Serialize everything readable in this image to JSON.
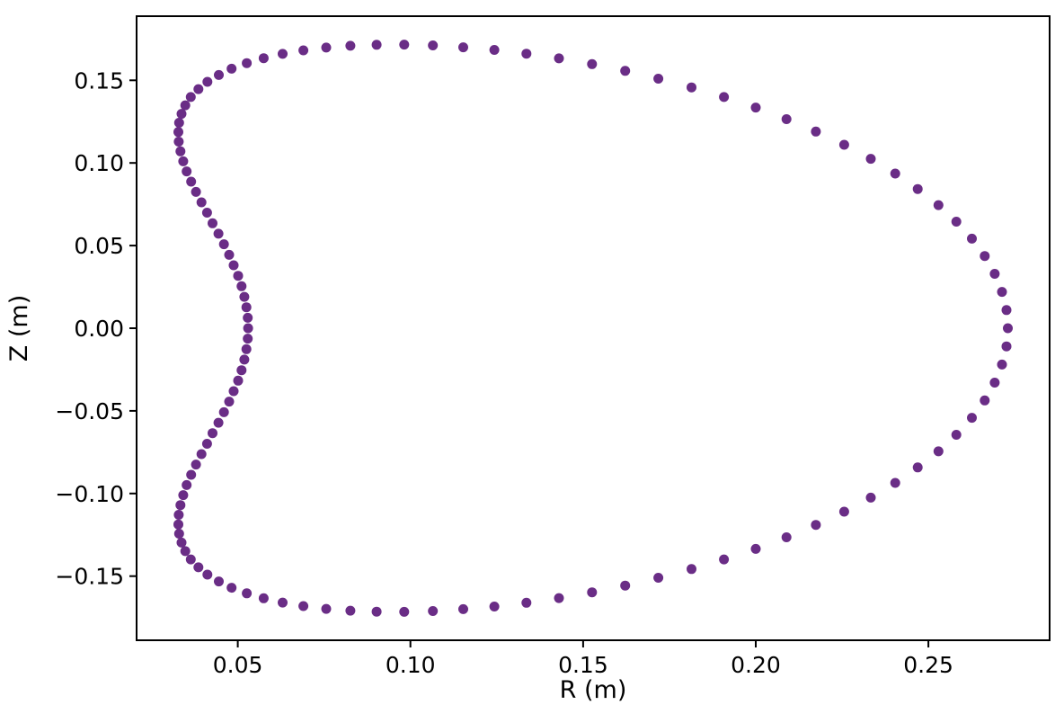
{
  "figure": {
    "background": "#ffffff",
    "frame_color": "#000000"
  },
  "chart_data": {
    "type": "scatter",
    "title": "",
    "xlabel": "R (m)",
    "ylabel": "Z (m)",
    "grid": false,
    "legend": null,
    "xlim": [
      0.0207,
      0.2851
    ],
    "ylim": [
      -0.1888,
      0.1888
    ],
    "xticks": {
      "values": [
        0.05,
        0.1,
        0.15,
        0.2,
        0.25
      ],
      "labels": [
        "0.05",
        "0.10",
        "0.15",
        "0.20",
        "0.25"
      ]
    },
    "yticks": {
      "values": [
        0.15,
        0.1,
        0.05,
        0.0,
        -0.05,
        -0.1,
        -0.15
      ],
      "labels": [
        "0.15",
        "0.10",
        "0.05",
        "0.00",
        "−0.05",
        "−0.10",
        "−0.15"
      ]
    },
    "marker": {
      "shape": "circle",
      "color": "#6a2d86",
      "radius_px": 5.5
    },
    "series": [
      {
        "name": "closed-boundary-curve",
        "points": [
          [
            0.273,
            0.0
          ],
          [
            0.2726,
            0.011
          ],
          [
            0.2713,
            0.022
          ],
          [
            0.2692,
            0.0329
          ],
          [
            0.2663,
            0.0437
          ],
          [
            0.2626,
            0.0542
          ],
          [
            0.2581,
            0.0645
          ],
          [
            0.2529,
            0.0745
          ],
          [
            0.2469,
            0.0842
          ],
          [
            0.2404,
            0.0936
          ],
          [
            0.2333,
            0.1025
          ],
          [
            0.2256,
            0.111
          ],
          [
            0.2174,
            0.119
          ],
          [
            0.2089,
            0.1265
          ],
          [
            0.2,
            0.1335
          ],
          [
            0.1908,
            0.1399
          ],
          [
            0.1814,
            0.1457
          ],
          [
            0.1718,
            0.151
          ],
          [
            0.1622,
            0.1557
          ],
          [
            0.1526,
            0.1598
          ],
          [
            0.143,
            0.1633
          ],
          [
            0.1336,
            0.1661
          ],
          [
            0.1243,
            0.1684
          ],
          [
            0.1153,
            0.17
          ],
          [
            0.1065,
            0.1711
          ],
          [
            0.0982,
            0.1716
          ],
          [
            0.0902,
            0.1715
          ],
          [
            0.0826,
            0.1709
          ],
          [
            0.0756,
            0.1698
          ],
          [
            0.069,
            0.1681
          ],
          [
            0.063,
            0.166
          ],
          [
            0.0575,
            0.1634
          ],
          [
            0.0526,
            0.1604
          ],
          [
            0.0482,
            0.157
          ],
          [
            0.0445,
            0.1532
          ],
          [
            0.0412,
            0.1491
          ],
          [
            0.0386,
            0.1447
          ],
          [
            0.0364,
            0.1399
          ],
          [
            0.0348,
            0.1349
          ],
          [
            0.0337,
            0.1297
          ],
          [
            0.033,
            0.1243
          ],
          [
            0.0328,
            0.1187
          ],
          [
            0.0329,
            0.1129
          ],
          [
            0.0334,
            0.107
          ],
          [
            0.0342,
            0.101
          ],
          [
            0.0352,
            0.0949
          ],
          [
            0.0365,
            0.0887
          ],
          [
            0.0379,
            0.0825
          ],
          [
            0.0395,
            0.0762
          ],
          [
            0.0411,
            0.0699
          ],
          [
            0.0427,
            0.0635
          ],
          [
            0.0444,
            0.0572
          ],
          [
            0.046,
            0.0508
          ],
          [
            0.0475,
            0.0444
          ],
          [
            0.0488,
            0.0381
          ],
          [
            0.0501,
            0.0317
          ],
          [
            0.0511,
            0.0254
          ],
          [
            0.0519,
            0.019
          ],
          [
            0.0525,
            0.0127
          ],
          [
            0.0529,
            0.0063
          ],
          [
            0.053,
            0.0
          ],
          [
            0.0529,
            -0.0063
          ],
          [
            0.0525,
            -0.0127
          ],
          [
            0.0519,
            -0.019
          ],
          [
            0.0511,
            -0.0254
          ],
          [
            0.0501,
            -0.0317
          ],
          [
            0.0488,
            -0.0381
          ],
          [
            0.0475,
            -0.0444
          ],
          [
            0.046,
            -0.0508
          ],
          [
            0.0444,
            -0.0572
          ],
          [
            0.0427,
            -0.0635
          ],
          [
            0.0411,
            -0.0699
          ],
          [
            0.0395,
            -0.0762
          ],
          [
            0.0379,
            -0.0825
          ],
          [
            0.0365,
            -0.0887
          ],
          [
            0.0352,
            -0.0949
          ],
          [
            0.0342,
            -0.101
          ],
          [
            0.0334,
            -0.107
          ],
          [
            0.0329,
            -0.1129
          ],
          [
            0.0328,
            -0.1187
          ],
          [
            0.033,
            -0.1243
          ],
          [
            0.0337,
            -0.1297
          ],
          [
            0.0348,
            -0.1349
          ],
          [
            0.0364,
            -0.1399
          ],
          [
            0.0386,
            -0.1447
          ],
          [
            0.0412,
            -0.1491
          ],
          [
            0.0445,
            -0.1532
          ],
          [
            0.0482,
            -0.157
          ],
          [
            0.0526,
            -0.1604
          ],
          [
            0.0575,
            -0.1634
          ],
          [
            0.063,
            -0.166
          ],
          [
            0.069,
            -0.1681
          ],
          [
            0.0756,
            -0.1698
          ],
          [
            0.0826,
            -0.1709
          ],
          [
            0.0902,
            -0.1715
          ],
          [
            0.0982,
            -0.1716
          ],
          [
            0.1065,
            -0.1711
          ],
          [
            0.1153,
            -0.17
          ],
          [
            0.1243,
            -0.1684
          ],
          [
            0.1336,
            -0.1661
          ],
          [
            0.143,
            -0.1633
          ],
          [
            0.1526,
            -0.1598
          ],
          [
            0.1622,
            -0.1557
          ],
          [
            0.1718,
            -0.151
          ],
          [
            0.1814,
            -0.1457
          ],
          [
            0.1908,
            -0.1399
          ],
          [
            0.2,
            -0.1335
          ],
          [
            0.2089,
            -0.1265
          ],
          [
            0.2174,
            -0.119
          ],
          [
            0.2256,
            -0.111
          ],
          [
            0.2333,
            -0.1025
          ],
          [
            0.2404,
            -0.0936
          ],
          [
            0.2469,
            -0.0842
          ],
          [
            0.2529,
            -0.0745
          ],
          [
            0.2581,
            -0.0645
          ],
          [
            0.2626,
            -0.0542
          ],
          [
            0.2663,
            -0.0437
          ],
          [
            0.2692,
            -0.0329
          ],
          [
            0.2713,
            -0.022
          ],
          [
            0.2726,
            -0.011
          ]
        ]
      }
    ]
  }
}
